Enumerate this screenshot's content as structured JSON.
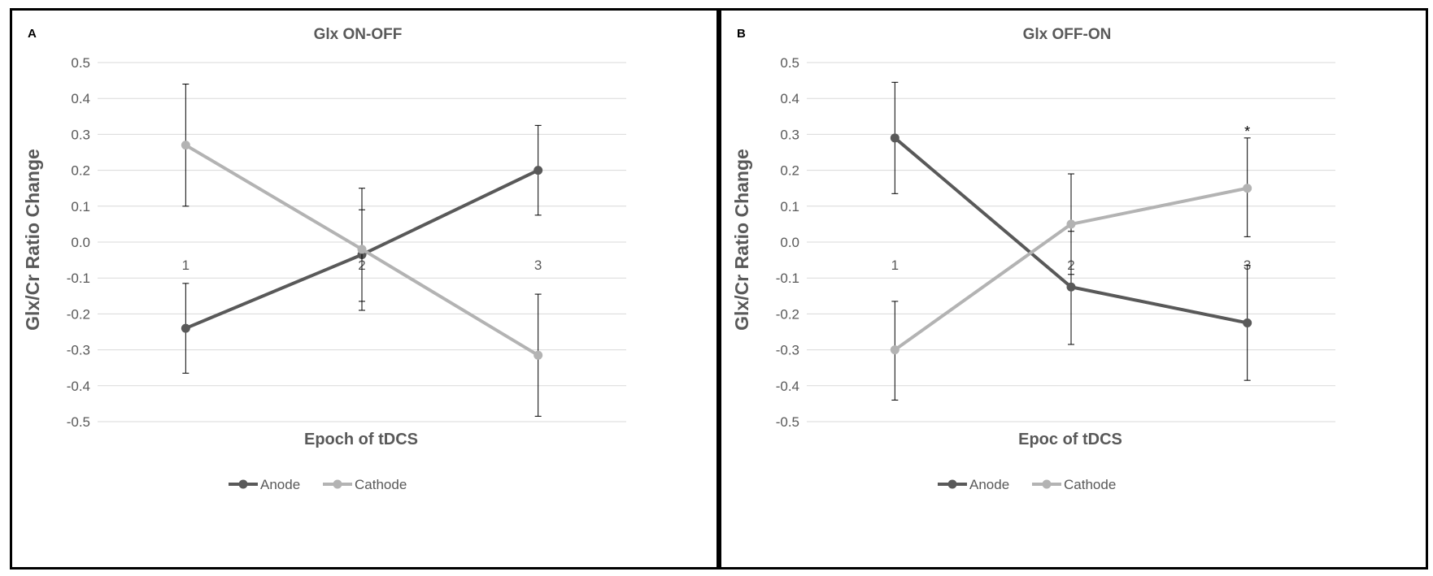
{
  "colors": {
    "anode": "#595959",
    "cathode": "#b3b3b3",
    "grid": "#d9d9d9",
    "text": "#595959"
  },
  "chart_data": [
    {
      "type": "line",
      "panel_letter": "A",
      "title": "Glx ON-OFF",
      "xlabel": "Epoch of tDCS",
      "ylabel": "Glx/Cr Ratio Change",
      "categories": [
        "1",
        "2",
        "3"
      ],
      "ylim": [
        -0.5,
        0.5
      ],
      "yticks": [
        0.5,
        0.4,
        0.3,
        0.2,
        0.1,
        0.0,
        -0.1,
        -0.2,
        -0.3,
        -0.4,
        -0.5
      ],
      "ytick_labels": [
        "0.5",
        "0.4",
        "0.3",
        "0.2",
        "0.1",
        "0.0",
        "-0.1",
        "-0.2",
        "-0.3",
        "-0.4",
        "-0.5"
      ],
      "grid": true,
      "legend_position": "bottom",
      "series": [
        {
          "name": "Anode",
          "color_key": "anode",
          "values": [
            -0.24,
            -0.035,
            0.2
          ],
          "err_lower": [
            -0.365,
            -0.165,
            0.075
          ],
          "err_upper": [
            -0.115,
            0.09,
            0.325
          ]
        },
        {
          "name": "Cathode",
          "color_key": "cathode",
          "values": [
            0.27,
            -0.02,
            -0.315
          ],
          "err_lower": [
            0.1,
            -0.19,
            -0.485
          ],
          "err_upper": [
            0.44,
            0.15,
            -0.145
          ]
        }
      ],
      "annotations": []
    },
    {
      "type": "line",
      "panel_letter": "B",
      "title": "Glx OFF-ON",
      "xlabel": "Epoc of tDCS",
      "ylabel": "Glx/Cr Ratio Change",
      "categories": [
        "1",
        "2",
        "3"
      ],
      "ylim": [
        -0.5,
        0.5
      ],
      "yticks": [
        0.5,
        0.4,
        0.3,
        0.2,
        0.1,
        0.0,
        -0.1,
        -0.2,
        -0.3,
        -0.4,
        -0.5
      ],
      "ytick_labels": [
        "0.5",
        "0.4",
        "0.3",
        "0.2",
        "0.1",
        "0.0",
        "-0.1",
        "-0.2",
        "-0.3",
        "-0.4",
        "-0.5"
      ],
      "grid": true,
      "legend_position": "bottom",
      "series": [
        {
          "name": "Anode",
          "color_key": "anode",
          "values": [
            0.29,
            -0.125,
            -0.225
          ],
          "err_lower": [
            0.135,
            -0.285,
            -0.385
          ],
          "err_upper": [
            0.445,
            0.03,
            -0.065
          ]
        },
        {
          "name": "Cathode",
          "color_key": "cathode",
          "values": [
            -0.3,
            0.05,
            0.15
          ],
          "err_lower": [
            -0.44,
            -0.09,
            0.015
          ],
          "err_upper": [
            -0.165,
            0.19,
            0.29
          ]
        }
      ],
      "annotations": [
        {
          "text": "*",
          "category": "3",
          "y": 0.31
        }
      ]
    }
  ]
}
